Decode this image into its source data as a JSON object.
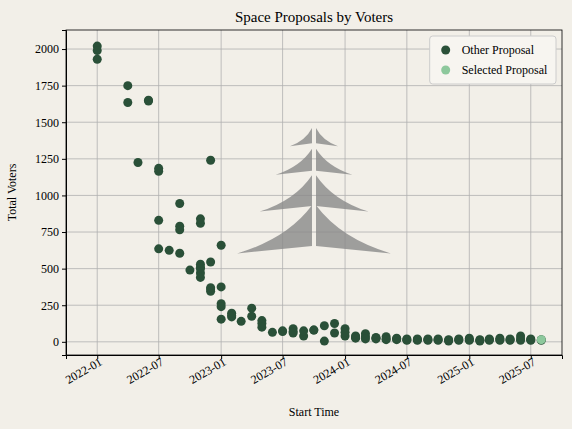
{
  "chart_data": {
    "type": "scatter",
    "title": "Space Proposals by Voters",
    "x_label": "Start Time",
    "y_label": "Total Voters",
    "grid": true,
    "legend": "upper right",
    "xlim": [
      "2021-10",
      "2025-10"
    ],
    "xticks": [
      "2022-01",
      "2022-07",
      "2023-01",
      "2023-07",
      "2024-01",
      "2024-07",
      "2025-01",
      "2025-07"
    ],
    "ylim": [
      -90,
      2130
    ],
    "yticks": [
      0,
      250,
      500,
      750,
      1000,
      1250,
      1500,
      1750,
      2000
    ],
    "series": [
      {
        "name": "Other Proposal",
        "color": "#2a5038",
        "marker": "circle",
        "x": [
          "2022-01",
          "2022-01",
          "2022-01",
          "2022-04",
          "2022-04",
          "2022-05",
          "2022-06",
          "2022-06",
          "2022-07",
          "2022-07",
          "2022-07",
          "2022-07",
          "2022-08",
          "2022-09",
          "2022-09",
          "2022-09",
          "2022-09",
          "2022-10",
          "2022-11",
          "2022-11",
          "2022-11",
          "2022-11",
          "2022-11",
          "2022-11",
          "2022-11",
          "2022-12",
          "2022-12",
          "2022-12",
          "2022-12",
          "2022-12",
          "2023-01",
          "2023-01",
          "2023-01",
          "2023-01",
          "2023-01",
          "2023-02",
          "2023-02",
          "2023-02",
          "2023-03",
          "2023-04",
          "2023-04",
          "2023-05",
          "2023-05",
          "2023-05",
          "2023-06",
          "2023-07",
          "2023-07",
          "2023-08",
          "2023-08",
          "2023-08",
          "2023-09",
          "2023-09",
          "2023-10",
          "2023-10",
          "2023-11",
          "2023-11",
          "2023-12",
          "2023-12",
          "2024-01",
          "2024-01",
          "2024-01",
          "2024-02",
          "2024-02",
          "2024-02",
          "2024-03",
          "2024-03",
          "2024-03",
          "2024-04",
          "2024-04",
          "2024-04",
          "2024-05",
          "2024-05",
          "2024-05",
          "2024-06",
          "2024-06",
          "2024-06",
          "2024-07",
          "2024-07",
          "2024-07",
          "2024-08",
          "2024-08",
          "2024-08",
          "2024-09",
          "2024-09",
          "2024-09",
          "2024-10",
          "2024-10",
          "2024-10",
          "2024-11",
          "2024-11",
          "2024-11",
          "2024-12",
          "2024-12",
          "2024-12",
          "2025-01",
          "2025-01",
          "2025-01",
          "2025-02",
          "2025-02",
          "2025-02",
          "2025-03",
          "2025-03",
          "2025-03",
          "2025-04",
          "2025-04",
          "2025-04",
          "2025-05",
          "2025-05",
          "2025-05",
          "2025-06",
          "2025-06",
          "2025-06",
          "2025-07",
          "2025-07",
          "2025-07",
          "2025-08",
          "2025-08"
        ],
        "values": [
          2020,
          1990,
          1930,
          1750,
          1635,
          1225,
          1650,
          1645,
          1165,
          1185,
          830,
          635,
          625,
          945,
          790,
          605,
          765,
          490,
          810,
          840,
          530,
          440,
          510,
          470,
          500,
          1240,
          360,
          345,
          545,
          370,
          660,
          375,
          260,
          240,
          155,
          170,
          195,
          180,
          140,
          175,
          230,
          145,
          125,
          100,
          65,
          75,
          70,
          90,
          70,
          60,
          40,
          75,
          80,
          80,
          110,
          5,
          60,
          125,
          90,
          40,
          65,
          40,
          25,
          30,
          55,
          35,
          20,
          30,
          20,
          25,
          35,
          20,
          15,
          20,
          15,
          25,
          20,
          15,
          10,
          15,
          10,
          20,
          15,
          10,
          20,
          10,
          20,
          15,
          10,
          15,
          5,
          10,
          15,
          20,
          25,
          15,
          10,
          15,
          10,
          5,
          10,
          20,
          15,
          25,
          15,
          10,
          20,
          10,
          15,
          40,
          20,
          10,
          20,
          10,
          15,
          10,
          15
        ]
      },
      {
        "name": "Selected Proposal",
        "color": "#8dc89c",
        "marker": "circle",
        "x": [
          "2025-08"
        ],
        "values": [
          15
        ]
      }
    ]
  }
}
